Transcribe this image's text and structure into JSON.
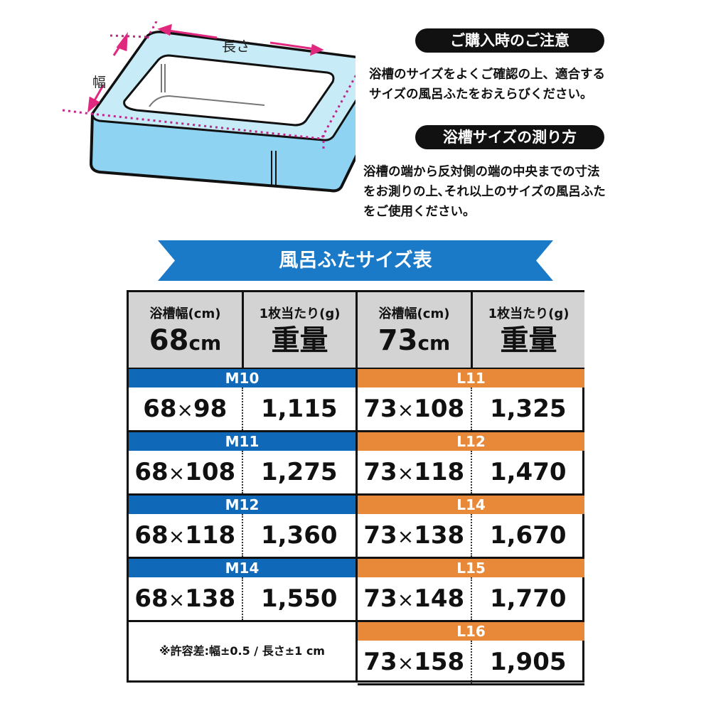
{
  "diagram": {
    "length_label": "長さ",
    "width_label": "幅"
  },
  "notice": {
    "title": "ご購入時のご注意",
    "lines": [
      "浴槽のサイズをよくご確認の上、適合する",
      "サイズの風呂ふたをおえらびください。"
    ]
  },
  "measure": {
    "title": "浴槽サイズの測り方",
    "lines": [
      "浴槽の端から反対側の端の中央までの寸法",
      "をお測りの上､それ以上のサイズの風呂ふた",
      "をご使用ください。"
    ]
  },
  "banner": {
    "title": "風呂ふたサイズ表"
  },
  "colors": {
    "m_series": "#1068b8",
    "l_series": "#e8893a",
    "header_bg": "#d3d3d3",
    "banner": "#1a7ac8",
    "pink": "#e0287f",
    "tub": "#8fd3f2"
  },
  "table": {
    "headers": [
      {
        "small": "浴槽幅(cm)",
        "big": "68",
        "unit": "cm"
      },
      {
        "small": "1枚当たり(g)",
        "big": "重量",
        "unit": ""
      },
      {
        "small": "浴槽幅(cm)",
        "big": "73",
        "unit": "cm"
      },
      {
        "small": "1枚当たり(g)",
        "big": "重量",
        "unit": ""
      }
    ],
    "times": "×",
    "m_rows": [
      {
        "model": "M10",
        "w": "68",
        "l": "98",
        "weight": "1,115"
      },
      {
        "model": "M11",
        "w": "68",
        "l": "108",
        "weight": "1,275"
      },
      {
        "model": "M12",
        "w": "68",
        "l": "118",
        "weight": "1,360"
      },
      {
        "model": "M14",
        "w": "68",
        "l": "138",
        "weight": "1,550"
      }
    ],
    "l_rows": [
      {
        "model": "L11",
        "w": "73",
        "l": "108",
        "weight": "1,325"
      },
      {
        "model": "L12",
        "w": "73",
        "l": "118",
        "weight": "1,470"
      },
      {
        "model": "L14",
        "w": "73",
        "l": "138",
        "weight": "1,670"
      },
      {
        "model": "L15",
        "w": "73",
        "l": "148",
        "weight": "1,770"
      },
      {
        "model": "L16",
        "w": "73",
        "l": "158",
        "weight": "1,905"
      }
    ],
    "tolerance": "※許容差:幅±0.5 / 長さ±1 cm"
  }
}
